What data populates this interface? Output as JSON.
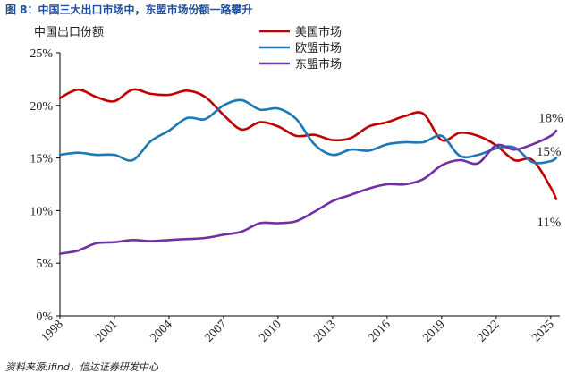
{
  "figure": {
    "title": "图 8：中国三大出口市场中，东盟市场份额一路攀升",
    "source": "资料来源:ifind，信达证券研发中心"
  },
  "chart_data": {
    "type": "line",
    "title": "图 8：中国三大出口市场中，东盟市场份额一路攀升",
    "ylabel": "中国出口份额",
    "xlabel": "",
    "xlim": [
      1998,
      2025.5
    ],
    "ylim": [
      0,
      25
    ],
    "x_ticks": [
      1998,
      2001,
      2004,
      2007,
      2010,
      2013,
      2016,
      2019,
      2022,
      2025
    ],
    "y_ticks": [
      0,
      5,
      10,
      15,
      20,
      25
    ],
    "y_tick_labels": [
      "0%",
      "5%",
      "10%",
      "15%",
      "20%",
      "25%"
    ],
    "grid": false,
    "legend_position": "top-center",
    "series": [
      {
        "name": "美国市场",
        "color": "#c00000",
        "x": [
          1998,
          1999,
          2000,
          2001,
          2002,
          2003,
          2004,
          2005,
          2006,
          2007,
          2008,
          2009,
          2010,
          2011,
          2012,
          2013,
          2014,
          2015,
          2016,
          2017,
          2018,
          2019,
          2020,
          2021,
          2022,
          2023,
          2024,
          2025,
          2025.3
        ],
        "values": [
          20.7,
          21.5,
          20.8,
          20.4,
          21.5,
          21.1,
          21.0,
          21.4,
          20.8,
          19.1,
          17.7,
          18.4,
          18.0,
          17.1,
          17.2,
          16.7,
          16.9,
          18.0,
          18.4,
          19.0,
          19.2,
          16.7,
          17.4,
          17.1,
          16.2,
          14.8,
          14.8,
          12.2,
          11.1
        ]
      },
      {
        "name": "欧盟市场",
        "color": "#1f77b4",
        "x": [
          1998,
          1999,
          2000,
          2001,
          2002,
          2003,
          2004,
          2005,
          2006,
          2007,
          2008,
          2009,
          2010,
          2011,
          2012,
          2013,
          2014,
          2015,
          2016,
          2017,
          2018,
          2019,
          2020,
          2021,
          2022,
          2023,
          2024,
          2025,
          2025.3
        ],
        "values": [
          15.3,
          15.5,
          15.3,
          15.3,
          14.8,
          16.6,
          17.6,
          18.8,
          18.7,
          20.0,
          20.5,
          19.6,
          19.7,
          18.7,
          16.3,
          15.3,
          15.8,
          15.7,
          16.3,
          16.5,
          16.5,
          17.1,
          15.2,
          15.3,
          15.9,
          16.0,
          14.6,
          14.7,
          15.0
        ]
      },
      {
        "name": "东盟市场",
        "color": "#7030a0",
        "x": [
          1998,
          1999,
          2000,
          2001,
          2002,
          2003,
          2004,
          2005,
          2006,
          2007,
          2008,
          2009,
          2010,
          2011,
          2012,
          2013,
          2014,
          2015,
          2016,
          2017,
          2018,
          2019,
          2020,
          2021,
          2022,
          2023,
          2024,
          2025,
          2025.3
        ],
        "values": [
          5.9,
          6.2,
          6.9,
          7.0,
          7.2,
          7.1,
          7.2,
          7.3,
          7.4,
          7.7,
          8.0,
          8.8,
          8.8,
          9.0,
          9.9,
          10.9,
          11.5,
          12.1,
          12.5,
          12.5,
          13.0,
          14.3,
          14.8,
          14.5,
          16.2,
          15.8,
          16.3,
          17.1,
          17.6
        ]
      }
    ],
    "annotations": [
      {
        "text": "18%",
        "x": 2025.0,
        "y": 18.4,
        "series": "东盟市场"
      },
      {
        "text": "15%",
        "x": 2024.9,
        "y": 15.2,
        "series": "欧盟市场"
      },
      {
        "text": "11%",
        "x": 2024.9,
        "y": 8.5,
        "series": "美国市场"
      }
    ]
  }
}
